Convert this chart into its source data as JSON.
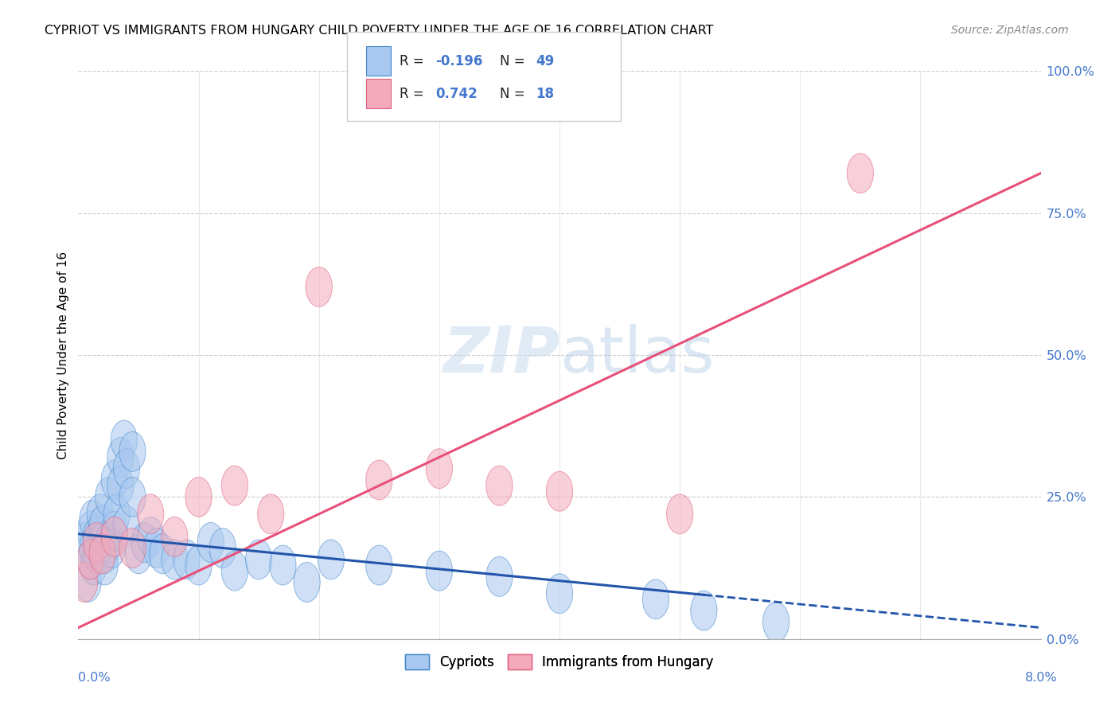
{
  "title": "CYPRIOT VS IMMIGRANTS FROM HUNGARY CHILD POVERTY UNDER THE AGE OF 16 CORRELATION CHART",
  "source": "Source: ZipAtlas.com",
  "ylabel": "Child Poverty Under the Age of 16",
  "ytick_labels": [
    "0.0%",
    "25.0%",
    "50.0%",
    "75.0%",
    "100.0%"
  ],
  "ytick_values": [
    0,
    25,
    50,
    75,
    100
  ],
  "xtick_values": [
    0,
    1,
    2,
    3,
    4,
    5,
    6,
    7,
    8
  ],
  "xlim": [
    0,
    8
  ],
  "ylim": [
    0,
    100
  ],
  "blue_color": "#A8C8F0",
  "pink_color": "#F4AABB",
  "blue_line_color": "#2255AA",
  "pink_line_color": "#E8507A",
  "blue_edge": "#4488CC",
  "pink_edge": "#E06080",
  "cypriot_x": [
    0.05,
    0.08,
    0.1,
    0.1,
    0.12,
    0.12,
    0.13,
    0.15,
    0.15,
    0.18,
    0.2,
    0.2,
    0.22,
    0.22,
    0.25,
    0.25,
    0.28,
    0.3,
    0.3,
    0.32,
    0.35,
    0.35,
    0.38,
    0.4,
    0.4,
    0.45,
    0.45,
    0.5,
    0.55,
    0.6,
    0.65,
    0.7,
    0.8,
    0.9,
    1.0,
    1.1,
    1.2,
    1.3,
    1.5,
    1.7,
    1.9,
    2.1,
    2.5,
    3.0,
    3.5,
    4.0,
    4.8,
    5.2,
    5.8
  ],
  "cypriot_y": [
    17,
    10,
    19,
    14,
    21,
    16,
    13,
    18,
    15,
    22,
    17,
    20,
    15,
    13,
    25,
    17,
    16,
    28,
    19,
    22,
    32,
    27,
    35,
    30,
    20,
    33,
    25,
    15,
    17,
    18,
    16,
    15,
    14,
    14,
    13,
    17,
    16,
    12,
    14,
    13,
    10,
    14,
    13,
    12,
    11,
    8,
    7,
    5,
    3
  ],
  "hungary_x": [
    0.05,
    0.1,
    0.15,
    0.2,
    0.3,
    0.45,
    0.6,
    0.8,
    1.0,
    1.3,
    1.6,
    2.0,
    2.5,
    3.0,
    3.5,
    4.0,
    5.0,
    6.5
  ],
  "hungary_y": [
    10,
    14,
    17,
    15,
    18,
    16,
    22,
    18,
    25,
    27,
    22,
    62,
    28,
    30,
    27,
    26,
    22,
    82
  ],
  "blue_trend_x0": 0.0,
  "blue_trend_y0": 18.5,
  "blue_trend_x1": 8.0,
  "blue_trend_y1": 2.0,
  "blue_solid_end": 5.2,
  "pink_trend_x0": 0.0,
  "pink_trend_y0": 2.0,
  "pink_trend_x1": 8.0,
  "pink_trend_y1": 82.0,
  "legend_r1_label": "R = ",
  "legend_r1_val": "-0.196",
  "legend_n1_label": "N = ",
  "legend_n1_val": "49",
  "legend_r2_label": "R =  ",
  "legend_r2_val": "0.742",
  "legend_n2_label": "N = ",
  "legend_n2_val": "18"
}
